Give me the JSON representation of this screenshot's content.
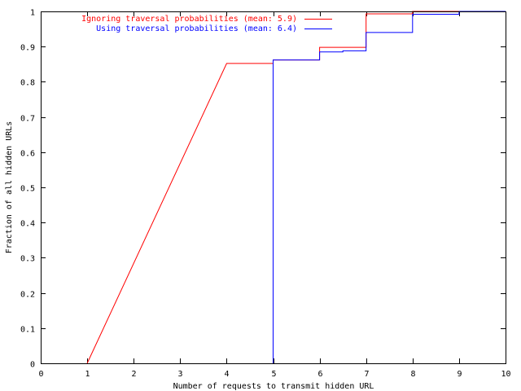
{
  "chart_data": {
    "type": "line",
    "title": "",
    "xlabel": "Number of requests to transmit hidden URL",
    "ylabel": "Fraction of all hidden URLs",
    "xlim": [
      0,
      10
    ],
    "ylim": [
      0,
      1
    ],
    "x_ticks": [
      "0",
      "1",
      "2",
      "3",
      "4",
      "5",
      "6",
      "7",
      "8",
      "9",
      "10"
    ],
    "y_ticks": [
      "0",
      "0.1",
      "0.2",
      "0.3",
      "0.4",
      "0.5",
      "0.6",
      "0.7",
      "0.8",
      "0.9",
      "1"
    ],
    "grid": false,
    "legend_position": "top-left",
    "series": [
      {
        "name": "Ignoring traversal probabilities (mean: 5.9)",
        "color": "#ff0000",
        "points": [
          [
            1,
            0
          ],
          [
            4,
            0.852
          ],
          [
            5,
            0.852
          ],
          [
            5,
            0.862
          ],
          [
            6,
            0.862
          ],
          [
            6,
            0.898
          ],
          [
            7,
            0.898
          ],
          [
            7,
            0.993
          ],
          [
            8,
            0.993
          ],
          [
            8,
            1.0
          ],
          [
            10,
            1.0
          ]
        ]
      },
      {
        "name": "Using traversal probabilities (mean: 6.4)",
        "color": "#0000ff",
        "points": [
          [
            5,
            0
          ],
          [
            5,
            0.862
          ],
          [
            6,
            0.862
          ],
          [
            6,
            0.885
          ],
          [
            6.5,
            0.885
          ],
          [
            6.5,
            0.888
          ],
          [
            7,
            0.888
          ],
          [
            7,
            0.94
          ],
          [
            8,
            0.94
          ],
          [
            8,
            0.992
          ],
          [
            9,
            0.992
          ],
          [
            9,
            1.0
          ],
          [
            10,
            1.0
          ]
        ]
      }
    ]
  }
}
